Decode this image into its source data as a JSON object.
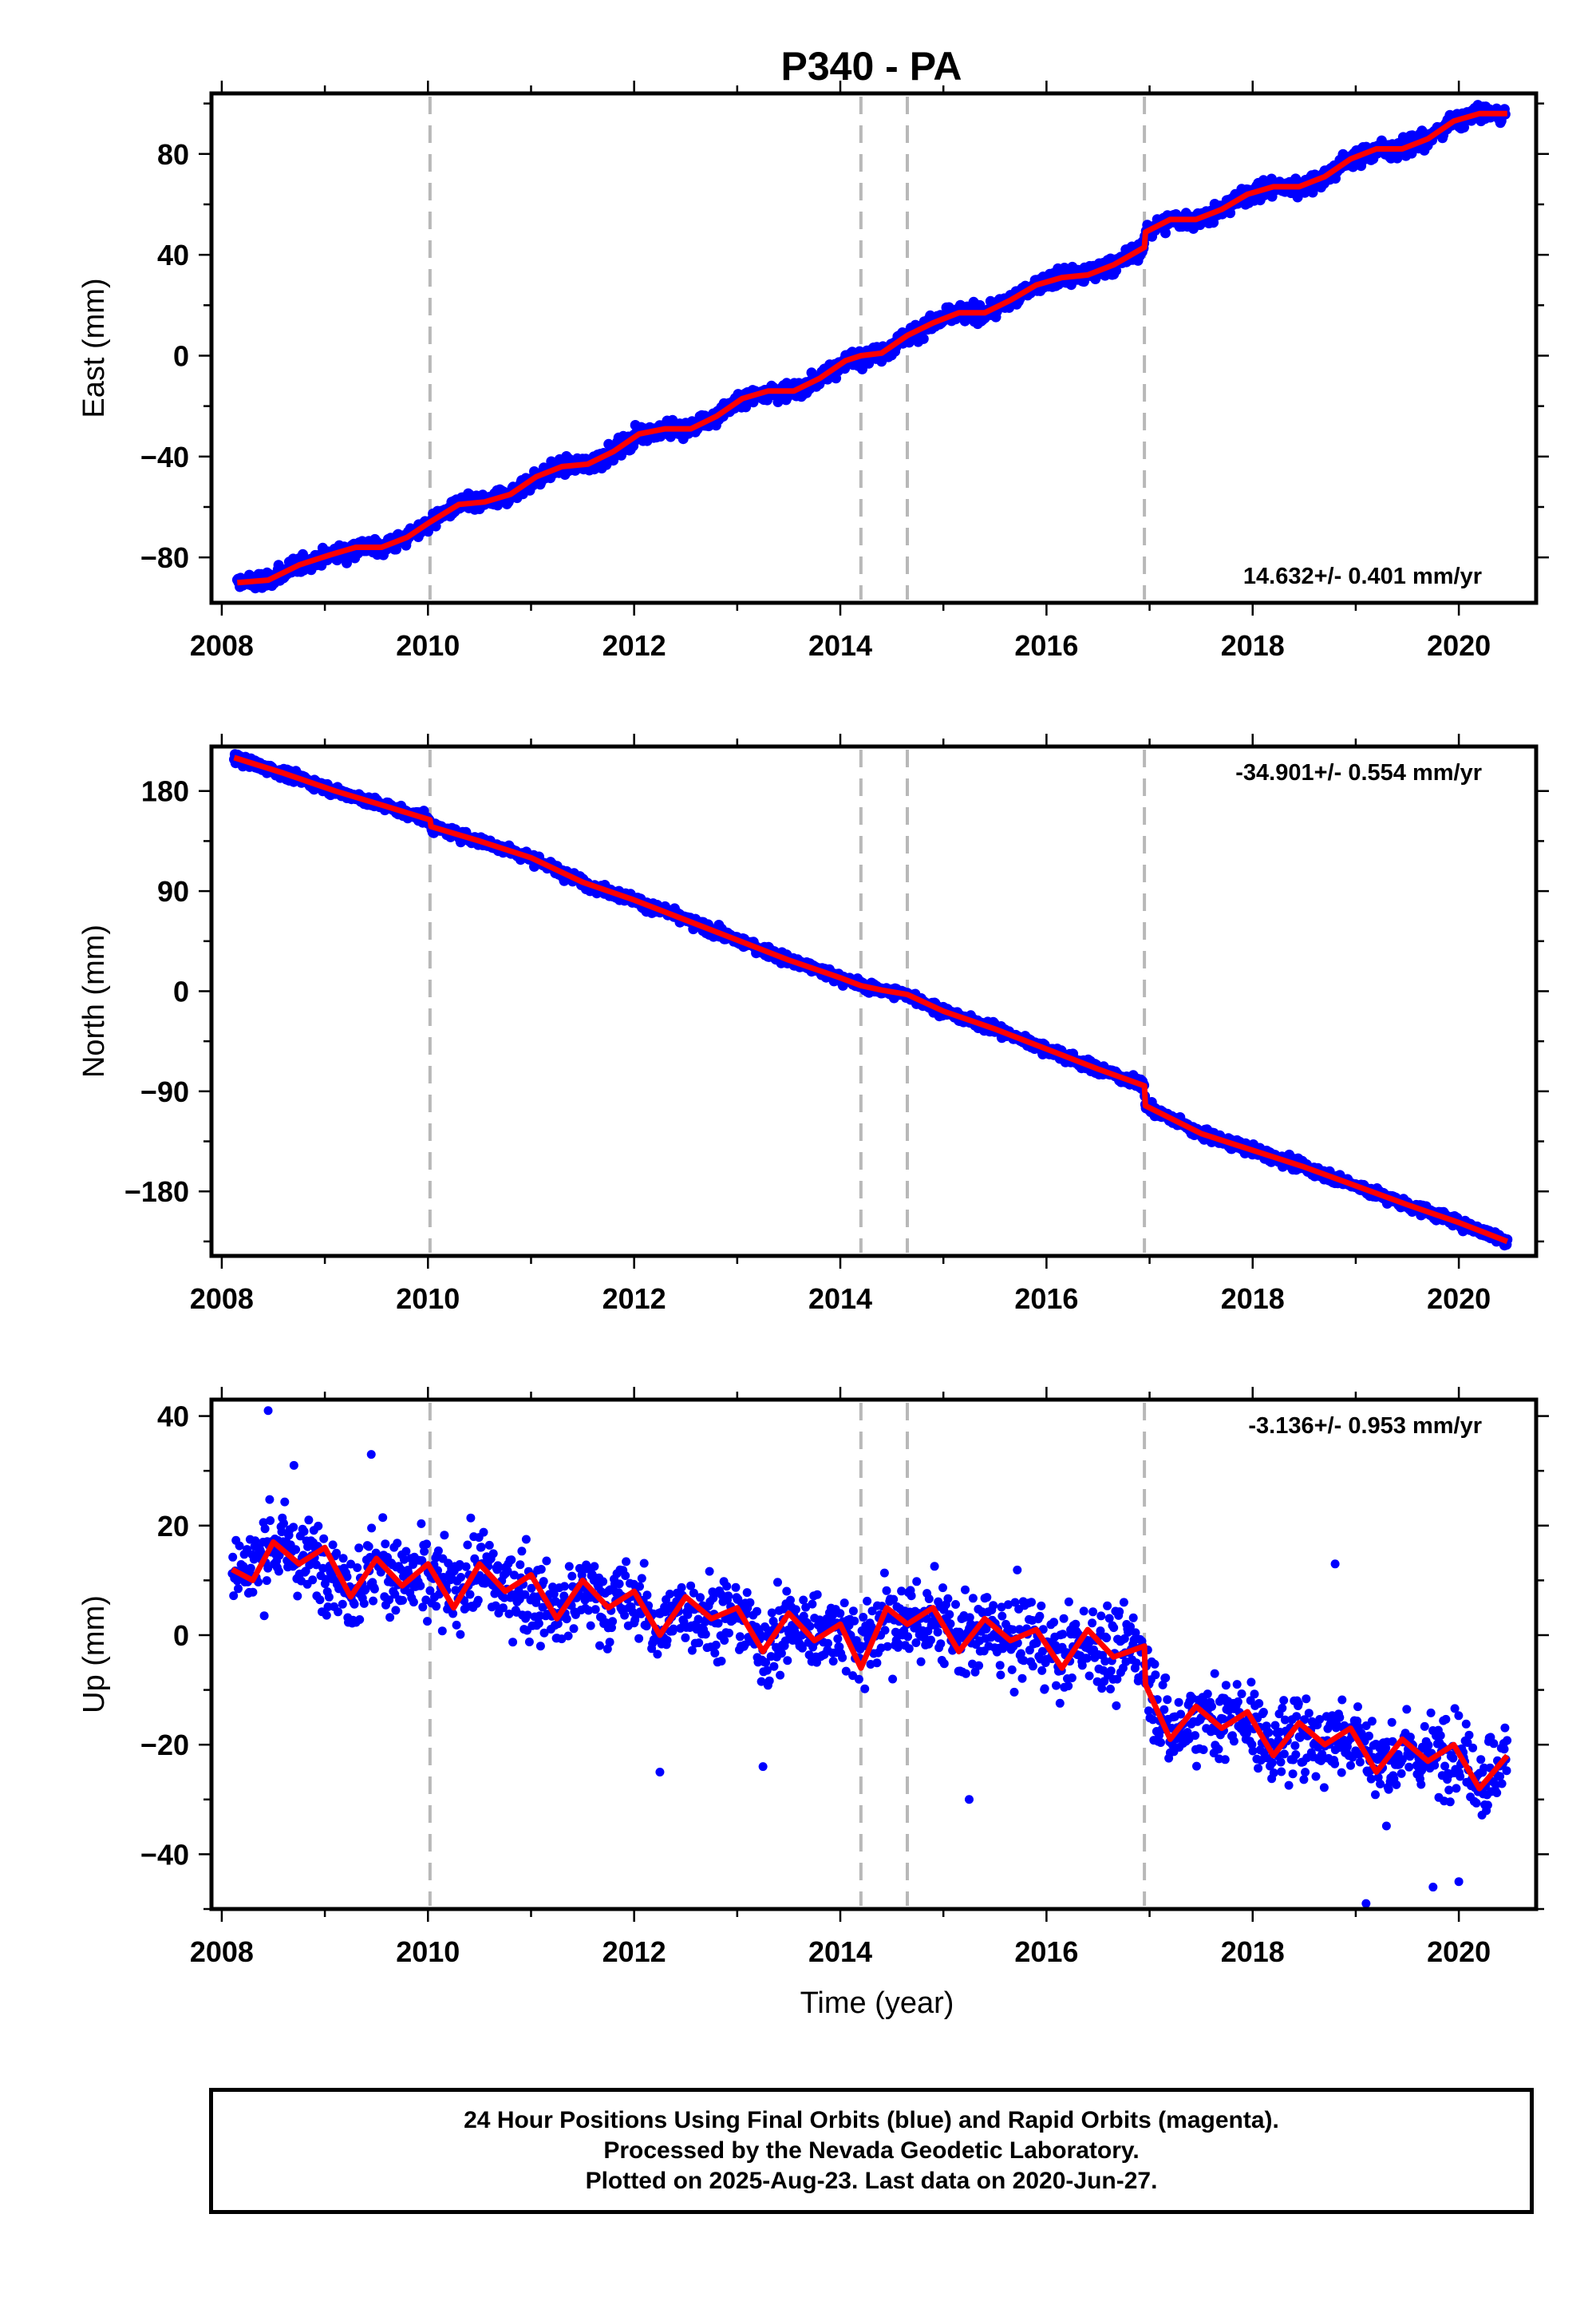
{
  "title": "P340 - PA",
  "colors": {
    "final_orbits": "#0000ff",
    "model_fit": "#ff0000",
    "breaks": "#b8b8b8"
  },
  "chart_data": [
    {
      "type": "scatter",
      "panel": "east",
      "ylabel": "East (mm)",
      "xlabel": "",
      "xlim": [
        2007.9,
        2020.75
      ],
      "ylim": [
        -98,
        104
      ],
      "xticks": [
        2008,
        2010,
        2012,
        2014,
        2016,
        2018,
        2020
      ],
      "yticks": [
        -80,
        -40,
        0,
        40,
        80
      ],
      "tick_labels": [
        "−80",
        "−40",
        "0",
        "40",
        "80"
      ],
      "rate_label": "14.632+/- 0.401 mm/yr",
      "rate_position": "bottom-right",
      "grid": false,
      "break_lines": [
        2010.02,
        2014.2,
        2014.65,
        2016.95
      ],
      "series": [
        {
          "kind": "points",
          "x": [
            2008.15,
            2008.6,
            2009.0,
            2009.5,
            2010.0,
            2010.3,
            2010.7,
            2011.0,
            2011.4,
            2011.8,
            2012.2,
            2012.6,
            2013.0,
            2013.4,
            2013.8,
            2014.2,
            2014.6,
            2015.0,
            2015.4,
            2015.8,
            2016.2,
            2016.6,
            2016.95,
            2017.2,
            2017.6,
            2018.0,
            2018.4,
            2018.8,
            2019.2,
            2019.6,
            2020.0,
            2020.45
          ],
          "y": [
            -88,
            -85,
            -78,
            -75,
            -66,
            -58,
            -57,
            -48,
            -42,
            -40,
            -31,
            -27,
            -25,
            -13,
            -12,
            -3,
            2,
            11,
            17,
            20,
            29,
            33,
            40,
            54,
            55,
            63,
            67,
            70,
            81,
            82,
            91,
            95
          ]
        },
        {
          "kind": "fit",
          "x": [
            2008.15,
            2008.45,
            2008.75,
            2009.05,
            2009.3,
            2009.55,
            2009.8,
            2010.02,
            2010.3,
            2010.55,
            2010.8,
            2011.05,
            2011.3,
            2011.55,
            2011.8,
            2012.05,
            2012.3,
            2012.55,
            2012.8,
            2013.05,
            2013.3,
            2013.55,
            2013.8,
            2014.05,
            2014.2,
            2014.4,
            2014.65,
            2014.9,
            2015.15,
            2015.4,
            2015.65,
            2015.9,
            2016.15,
            2016.4,
            2016.65,
            2016.95,
            2016.96,
            2017.2,
            2017.45,
            2017.7,
            2017.95,
            2018.2,
            2018.45,
            2018.7,
            2018.95,
            2019.2,
            2019.45,
            2019.7,
            2019.95,
            2020.2,
            2020.47
          ],
          "y": [
            -90,
            -89,
            -83,
            -79,
            -76,
            -76,
            -72,
            -66,
            -59,
            -58,
            -55,
            -48,
            -44,
            -43,
            -38,
            -31,
            -29,
            -29,
            -24,
            -17,
            -14,
            -14,
            -9,
            -2,
            0,
            1,
            8,
            13,
            17,
            17,
            22,
            28,
            31,
            32,
            36,
            43,
            49,
            54,
            54,
            58,
            64,
            67,
            67,
            71,
            78,
            82,
            82,
            86,
            93,
            96,
            96
          ]
        }
      ]
    },
    {
      "type": "scatter",
      "panel": "north",
      "ylabel": "North (mm)",
      "xlabel": "",
      "xlim": [
        2007.9,
        2020.75
      ],
      "ylim": [
        -238,
        220
      ],
      "xticks": [
        2008,
        2010,
        2012,
        2014,
        2016,
        2018,
        2020
      ],
      "yticks": [
        -180,
        -90,
        0,
        90,
        180
      ],
      "tick_labels": [
        "−180",
        "−90",
        "0",
        "90",
        "180"
      ],
      "rate_label": "-34.901+/- 0.554 mm/yr",
      "rate_position": "top-right",
      "grid": false,
      "break_lines": [
        2010.02,
        2014.2,
        2014.65,
        2016.95
      ],
      "series": [
        {
          "kind": "points",
          "x": [
            2008.12,
            2008.5,
            2009.0,
            2009.5,
            2010.0,
            2010.5,
            2011.0,
            2011.5,
            2012.0,
            2012.5,
            2013.0,
            2013.5,
            2014.0,
            2014.5,
            2015.0,
            2015.5,
            2016.0,
            2016.5,
            2016.95,
            2017.3,
            2017.7,
            2018.0,
            2018.5,
            2019.0,
            2019.5,
            2020.0,
            2020.47
          ],
          "y": [
            212,
            200,
            186,
            170,
            155,
            138,
            122,
            100,
            84,
            65,
            46,
            30,
            13,
            -2,
            -15,
            -34,
            -54,
            -68,
            -84,
            -122,
            -134,
            -145,
            -160,
            -175,
            -194,
            -210,
            -224
          ]
        },
        {
          "kind": "fit",
          "x": [
            2008.12,
            2008.6,
            2009.1,
            2009.6,
            2010.02,
            2010.03,
            2010.5,
            2011.0,
            2011.5,
            2012.0,
            2012.5,
            2013.0,
            2013.5,
            2014.0,
            2014.2,
            2014.4,
            2014.65,
            2015.0,
            2015.5,
            2016.0,
            2016.5,
            2016.95,
            2016.96,
            2017.5,
            2018.0,
            2018.5,
            2019.0,
            2019.5,
            2020.0,
            2020.47
          ],
          "y": [
            210,
            196,
            180,
            166,
            154,
            148,
            135,
            120,
            98,
            82,
            64,
            46,
            28,
            12,
            5,
            1,
            -3,
            -18,
            -34,
            -52,
            -70,
            -85,
            -103,
            -128,
            -143,
            -158,
            -175,
            -192,
            -208,
            -225
          ]
        }
      ]
    },
    {
      "type": "scatter",
      "panel": "up",
      "ylabel": "Up (mm)",
      "xlabel": "Time (year)",
      "xlim": [
        2007.9,
        2020.75
      ],
      "ylim": [
        -50,
        43
      ],
      "xticks": [
        2008,
        2010,
        2012,
        2014,
        2016,
        2018,
        2020
      ],
      "yticks": [
        -40,
        -20,
        0,
        20,
        40
      ],
      "tick_labels": [
        "−40",
        "−20",
        "0",
        "20",
        "40"
      ],
      "rate_label": "-3.136+/- 0.953 mm/yr",
      "rate_position": "top-right",
      "grid": false,
      "break_lines": [
        2010.02,
        2014.2,
        2014.65,
        2016.95
      ],
      "series": [
        {
          "kind": "points",
          "x": [
            2008.1,
            2008.3,
            2008.5,
            2008.7,
            2009.0,
            2009.3,
            2009.6,
            2010.0,
            2010.3,
            2010.6,
            2011.0,
            2011.3,
            2011.6,
            2012.0,
            2012.3,
            2012.6,
            2013.0,
            2013.3,
            2013.6,
            2014.0,
            2014.3,
            2014.6,
            2015.0,
            2015.3,
            2015.6,
            2016.0,
            2016.3,
            2016.6,
            2016.9,
            2017.2,
            2017.5,
            2017.8,
            2018.1,
            2018.4,
            2018.7,
            2019.0,
            2019.3,
            2019.6,
            2020.0,
            2020.3,
            2020.47
          ],
          "y": [
            12,
            14,
            18,
            15,
            12,
            9,
            12,
            8,
            10,
            11,
            5,
            4,
            7,
            5,
            2,
            4,
            3,
            -2,
            1,
            2,
            0,
            3,
            1,
            -1,
            0,
            -3,
            -2,
            -4,
            -1,
            -18,
            -16,
            -14,
            -18,
            -20,
            -19,
            -18,
            -24,
            -22,
            -20,
            -26,
            -22
          ],
          "outliers_x": [
            2008.45,
            2008.7,
            2009.45,
            2012.25,
            2013.25,
            2015.25,
            2018.8,
            2019.1,
            2019.75,
            2020.0
          ],
          "outliers_y": [
            41,
            31,
            33,
            -25,
            -24,
            -30,
            13,
            -49,
            -46,
            -45
          ]
        },
        {
          "kind": "fit",
          "x": [
            2008.1,
            2008.3,
            2008.5,
            2008.75,
            2009.0,
            2009.25,
            2009.5,
            2009.75,
            2010.0,
            2010.25,
            2010.5,
            2010.75,
            2011.0,
            2011.25,
            2011.5,
            2011.75,
            2012.0,
            2012.25,
            2012.5,
            2012.75,
            2013.0,
            2013.25,
            2013.5,
            2013.75,
            2014.0,
            2014.2,
            2014.45,
            2014.65,
            2014.9,
            2015.15,
            2015.4,
            2015.65,
            2015.9,
            2016.15,
            2016.4,
            2016.65,
            2016.95,
            2016.96,
            2017.2,
            2017.45,
            2017.7,
            2017.95,
            2018.2,
            2018.45,
            2018.7,
            2018.95,
            2019.2,
            2019.45,
            2019.7,
            2019.95,
            2020.2,
            2020.47
          ],
          "y": [
            12,
            10,
            17,
            13,
            16,
            7,
            14,
            9,
            13,
            5,
            13,
            8,
            11,
            3,
            10,
            5,
            8,
            0,
            7,
            3,
            5,
            -3,
            4,
            -1,
            2,
            -6,
            5,
            2,
            5,
            -3,
            3,
            -1,
            1,
            -6,
            1,
            -4,
            -2,
            -9,
            -19,
            -13,
            -17,
            -14,
            -22,
            -16,
            -20,
            -17,
            -25,
            -19,
            -23,
            -20,
            -28,
            -22
          ]
        }
      ]
    }
  ],
  "footer": {
    "line1": "24 Hour Positions Using Final Orbits (blue) and Rapid Orbits (magenta).",
    "line2": "Processed by the Nevada Geodetic Laboratory.",
    "line3": "Plotted on 2025-Aug-23. Last data on 2020-Jun-27."
  }
}
